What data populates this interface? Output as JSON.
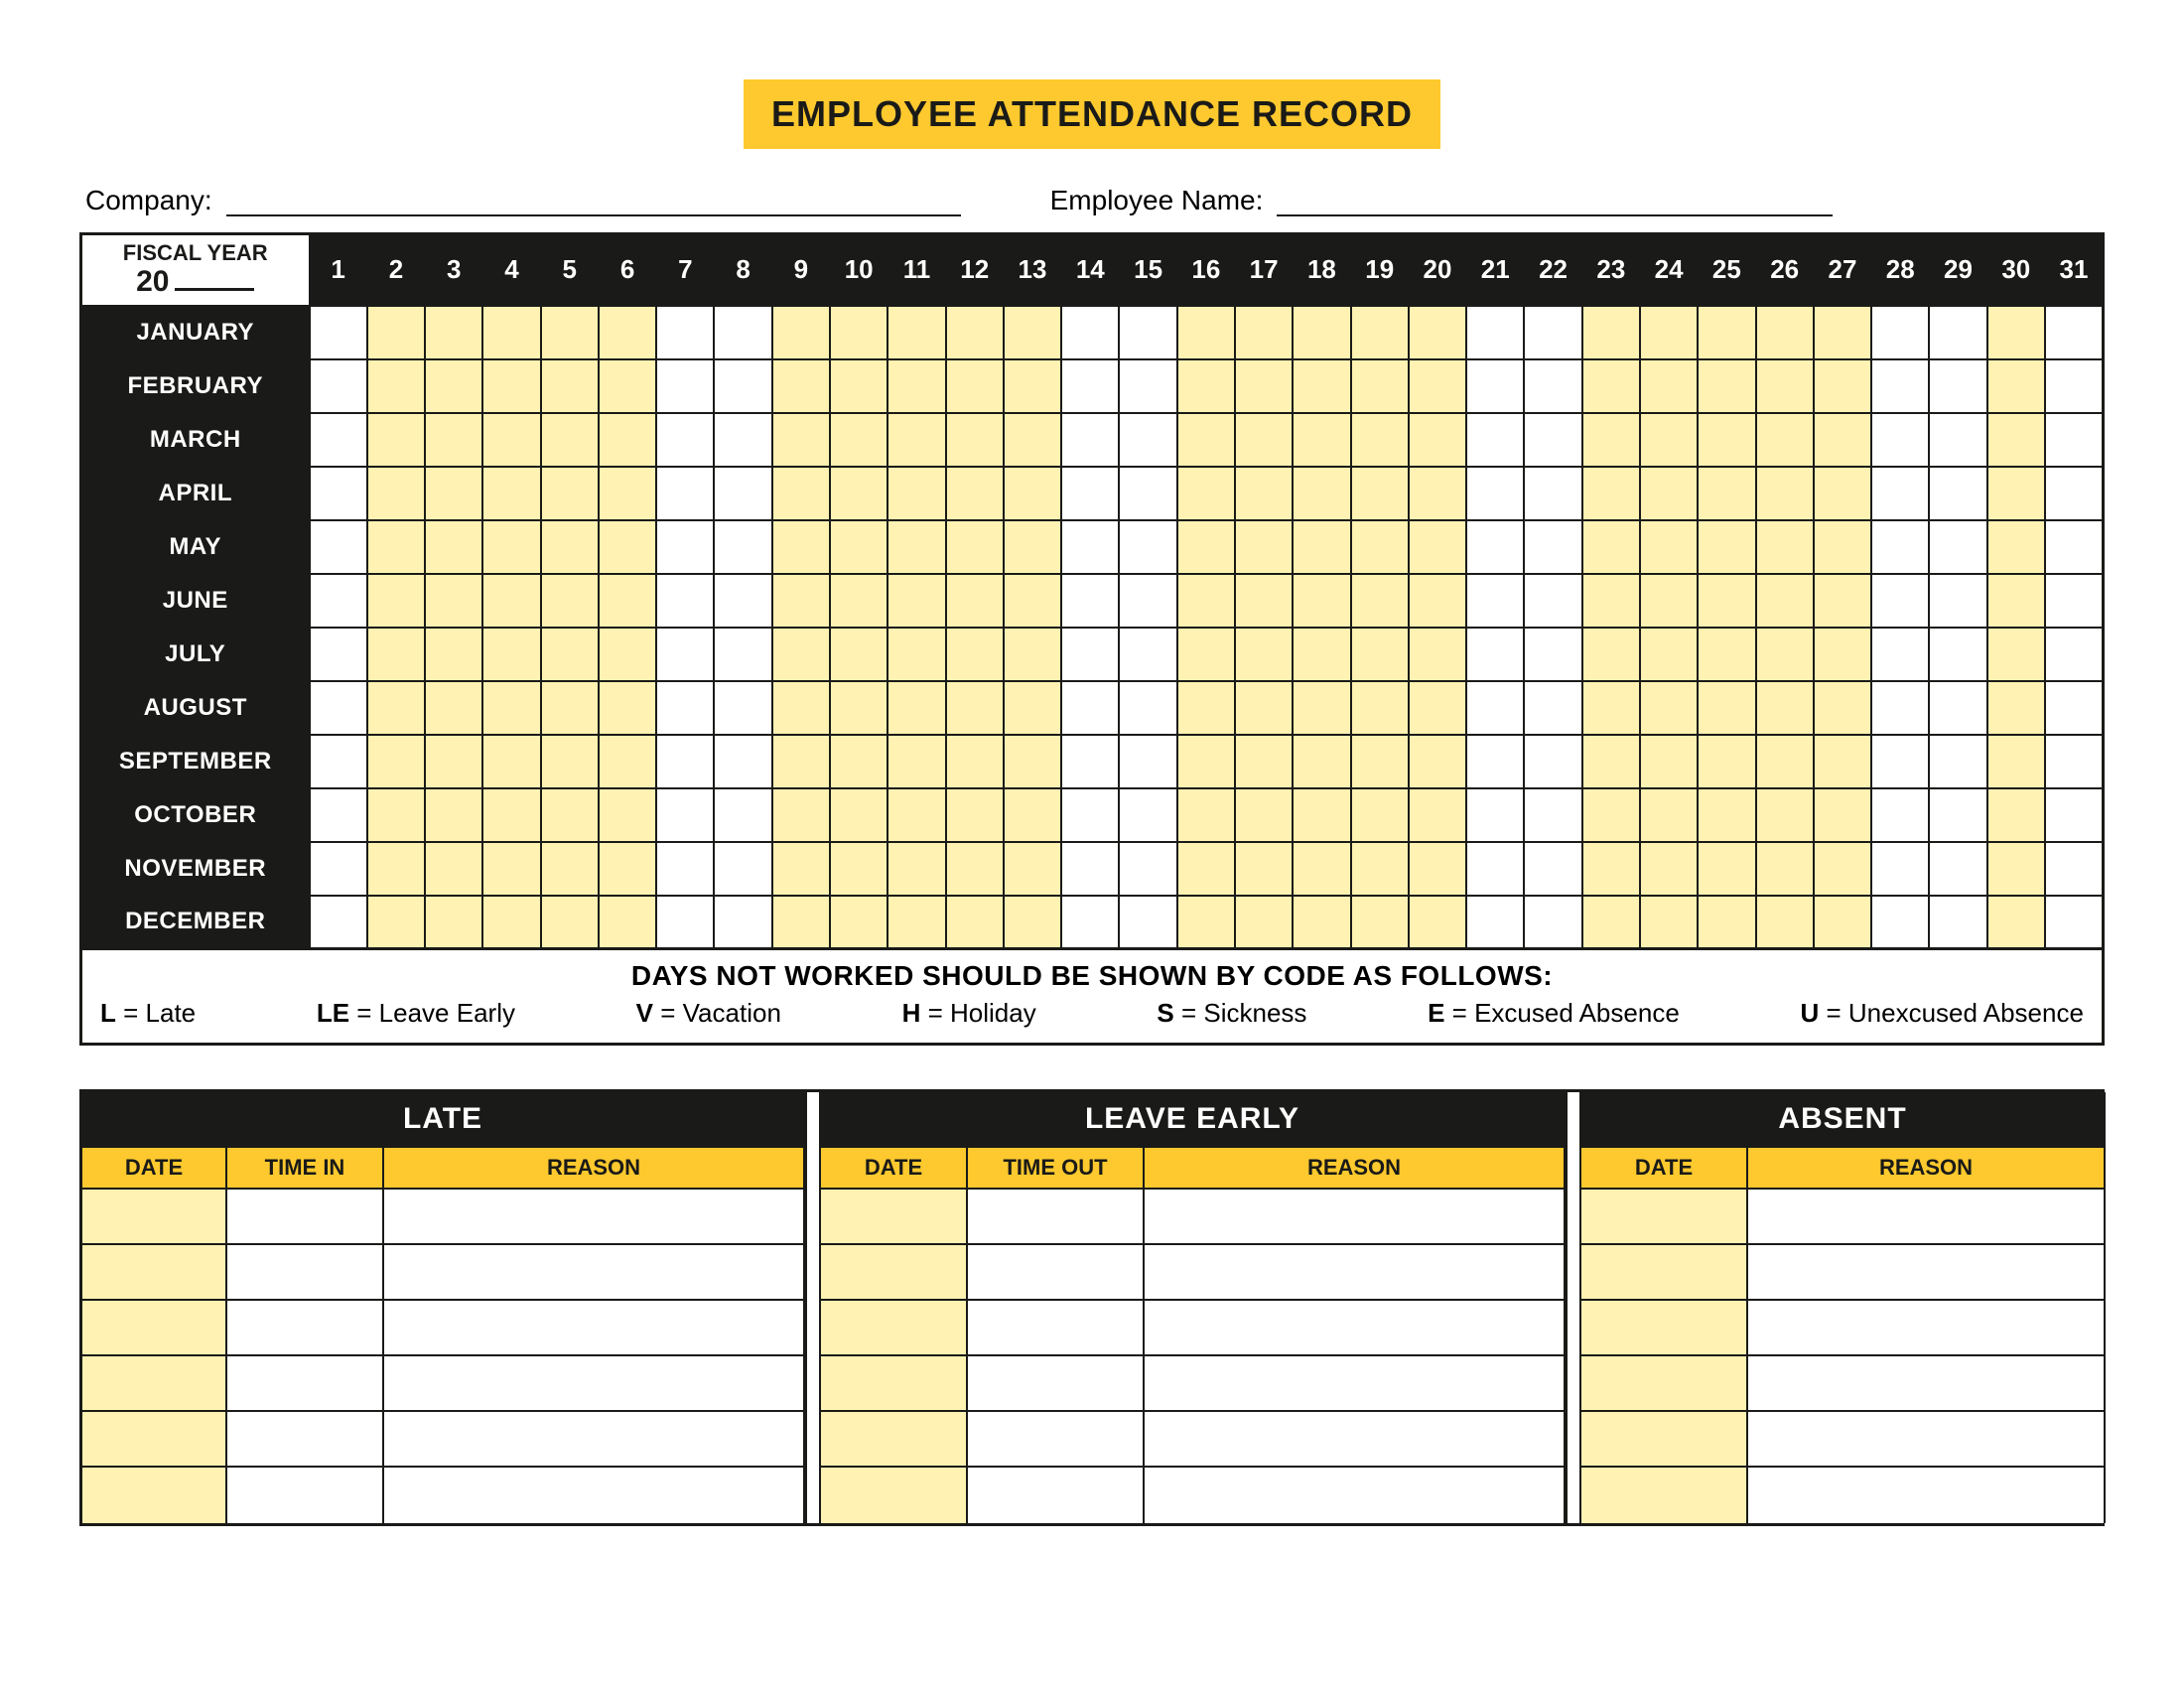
{
  "colors": {
    "accent_yellow": "#fec92e",
    "tint_yellow": "#fff2b2",
    "black": "#1a1a18",
    "white": "#ffffff"
  },
  "title": "EMPLOYEE ATTENDANCE RECORD",
  "header": {
    "company_label": "Company:",
    "employee_label": "Employee Name:"
  },
  "calendar": {
    "fiscal_label": "FISCAL YEAR",
    "year_prefix": "20",
    "days": [
      "1",
      "2",
      "3",
      "4",
      "5",
      "6",
      "7",
      "8",
      "9",
      "10",
      "11",
      "12",
      "13",
      "14",
      "15",
      "16",
      "17",
      "18",
      "19",
      "20",
      "21",
      "22",
      "23",
      "24",
      "25",
      "26",
      "27",
      "28",
      "29",
      "30",
      "31"
    ],
    "months": [
      "JANUARY",
      "FEBRUARY",
      "MARCH",
      "APRIL",
      "MAY",
      "JUNE",
      "JULY",
      "AUGUST",
      "SEPTEMBER",
      "OCTOBER",
      "NOVEMBER",
      "DECEMBER"
    ],
    "tinted_days": [
      2,
      3,
      4,
      5,
      6,
      9,
      10,
      11,
      12,
      13,
      16,
      17,
      18,
      19,
      20,
      23,
      24,
      25,
      26,
      27,
      30
    ]
  },
  "legend": {
    "title": "DAYS NOT WORKED SHOULD BE SHOWN BY CODE AS FOLLOWS:",
    "codes": [
      {
        "code": "L",
        "text": "Late"
      },
      {
        "code": "LE",
        "text": "Leave Early"
      },
      {
        "code": "V",
        "text": "Vacation"
      },
      {
        "code": "H",
        "text": "Holiday"
      },
      {
        "code": "S",
        "text": "Sickness"
      },
      {
        "code": "E",
        "text": "Excused Absence"
      },
      {
        "code": "U",
        "text": "Unexcused Absence"
      }
    ]
  },
  "sections": {
    "row_count": 6,
    "groups": [
      {
        "title": "LATE",
        "columns": [
          "DATE",
          "TIME IN",
          "REASON"
        ]
      },
      {
        "title": "LEAVE EARLY",
        "columns": [
          "DATE",
          "TIME OUT",
          "REASON"
        ]
      },
      {
        "title": "ABSENT",
        "columns": [
          "DATE",
          "REASON"
        ]
      }
    ]
  }
}
